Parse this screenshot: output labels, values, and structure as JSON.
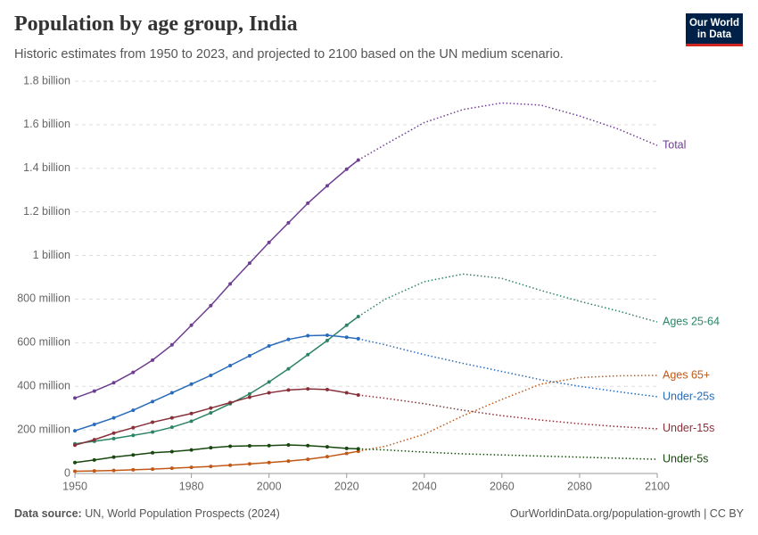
{
  "header": {
    "title": "Population by age group, India",
    "subtitle": "Historic estimates from 1950 to 2023, and projected to 2100 based on the UN medium scenario.",
    "logo": "Our World in Data"
  },
  "footer": {
    "source_label": "Data source:",
    "source": "UN, World Population Prospects (2024)",
    "url": "OurWorldinData.org/population-growth | CC BY"
  },
  "chart_data": {
    "type": "line",
    "grid": true,
    "x": [
      1950,
      1955,
      1960,
      1965,
      1970,
      1975,
      1980,
      1985,
      1990,
      1995,
      2000,
      2005,
      2010,
      2015,
      2020,
      2023,
      2030,
      2040,
      2050,
      2060,
      2070,
      2080,
      2090,
      2100
    ],
    "xlim": [
      1950,
      2100
    ],
    "xticks": [
      1950,
      1980,
      2000,
      2020,
      2040,
      2060,
      2080,
      2100
    ],
    "ylim": [
      0,
      1800000000
    ],
    "yticks": [
      0,
      {
        "value": 200000000,
        "label": "200 million"
      },
      {
        "value": 400000000,
        "label": "400 million"
      },
      {
        "value": 600000000,
        "label": "600 million"
      },
      {
        "value": 800000000,
        "label": "800 million"
      },
      {
        "value": 1000000000,
        "label": "1 billion"
      },
      {
        "value": 1200000000,
        "label": "1.2 billion"
      },
      {
        "value": 1400000000,
        "label": "1.4 billion"
      },
      {
        "value": 1600000000,
        "label": "1.6 billion"
      },
      {
        "value": 1800000000,
        "label": "1.8 billion"
      }
    ],
    "series": [
      {
        "name": "Total",
        "color": "#6d3e91",
        "values": [
          346000000,
          378000000,
          416000000,
          464000000,
          520000000,
          590000000,
          680000000,
          770000000,
          870000000,
          965000000,
          1060000000,
          1150000000,
          1240000000,
          1320000000,
          1396000000,
          1438000000,
          null,
          null,
          null,
          null,
          null,
          null,
          null,
          null
        ],
        "projection": [
          null,
          null,
          null,
          null,
          null,
          null,
          null,
          null,
          null,
          null,
          null,
          null,
          null,
          null,
          null,
          null,
          1510000000,
          1610000000,
          1670000000,
          1700000000,
          1690000000,
          1640000000,
          1580000000,
          1505000000
        ]
      },
      {
        "name": "Ages 25-64",
        "color": "#2c8465",
        "values": [
          136000000,
          148000000,
          160000000,
          175000000,
          190000000,
          212000000,
          240000000,
          278000000,
          320000000,
          365000000,
          420000000,
          480000000,
          545000000,
          610000000,
          680000000,
          720000000,
          null,
          null,
          null,
          null,
          null,
          null,
          null,
          null
        ],
        "projection": [
          null,
          null,
          null,
          null,
          null,
          null,
          null,
          null,
          null,
          null,
          null,
          null,
          null,
          null,
          null,
          null,
          800000000,
          880000000,
          915000000,
          895000000,
          840000000,
          790000000,
          745000000,
          695000000
        ]
      },
      {
        "name": "Ages 65+",
        "color": "#c05917",
        "values": [
          10000000,
          12000000,
          14000000,
          17000000,
          20000000,
          24000000,
          28000000,
          32000000,
          38000000,
          44000000,
          50000000,
          57000000,
          65000000,
          77000000,
          92000000,
          102000000,
          null,
          null,
          null,
          null,
          null,
          null,
          null,
          null
        ],
        "projection": [
          null,
          null,
          null,
          null,
          null,
          null,
          null,
          null,
          null,
          null,
          null,
          null,
          null,
          null,
          null,
          null,
          125000000,
          180000000,
          265000000,
          340000000,
          410000000,
          440000000,
          448000000,
          450000000
        ]
      },
      {
        "name": "Under-25s",
        "color": "#286bbb",
        "values": [
          196000000,
          225000000,
          255000000,
          290000000,
          330000000,
          370000000,
          410000000,
          450000000,
          495000000,
          540000000,
          585000000,
          615000000,
          632000000,
          634000000,
          625000000,
          618000000,
          null,
          null,
          null,
          null,
          null,
          null,
          null,
          null
        ],
        "projection": [
          null,
          null,
          null,
          null,
          null,
          null,
          null,
          null,
          null,
          null,
          null,
          null,
          null,
          null,
          null,
          null,
          590000000,
          545000000,
          505000000,
          468000000,
          430000000,
          400000000,
          375000000,
          352000000
        ]
      },
      {
        "name": "Under-15s",
        "color": "#883039",
        "values": [
          130000000,
          155000000,
          185000000,
          210000000,
          235000000,
          255000000,
          275000000,
          300000000,
          325000000,
          350000000,
          370000000,
          383000000,
          388000000,
          385000000,
          370000000,
          360000000,
          null,
          null,
          null,
          null,
          null,
          null,
          null,
          null
        ],
        "projection": [
          null,
          null,
          null,
          null,
          null,
          null,
          null,
          null,
          null,
          null,
          null,
          null,
          null,
          null,
          null,
          null,
          345000000,
          320000000,
          290000000,
          265000000,
          245000000,
          228000000,
          215000000,
          205000000
        ]
      },
      {
        "name": "Under-5s",
        "color": "#18470f",
        "values": [
          50000000,
          62000000,
          75000000,
          85000000,
          95000000,
          100000000,
          108000000,
          118000000,
          125000000,
          127000000,
          128000000,
          131000000,
          128000000,
          122000000,
          115000000,
          113000000,
          null,
          null,
          null,
          null,
          null,
          null,
          null,
          null
        ],
        "projection": [
          null,
          null,
          null,
          null,
          null,
          null,
          null,
          null,
          null,
          null,
          null,
          null,
          null,
          null,
          null,
          null,
          108000000,
          98000000,
          90000000,
          85000000,
          80000000,
          75000000,
          70000000,
          65000000
        ]
      }
    ]
  }
}
